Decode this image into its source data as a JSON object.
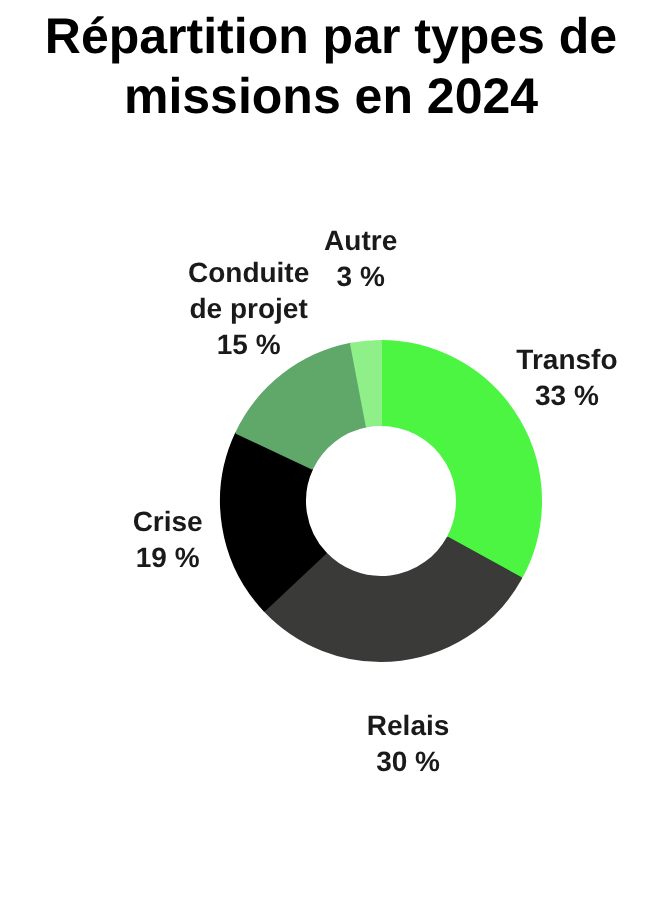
{
  "chart_data": {
    "type": "donut",
    "title": "Répartition par types de missions en 2024",
    "categories": [
      "Transfo",
      "Relais",
      "Crise",
      "Conduite de projet",
      "Autre"
    ],
    "values": [
      33,
      30,
      19,
      15,
      3
    ],
    "value_labels": [
      "33 %",
      "30 %",
      "19 %",
      "15 %",
      "3 %"
    ],
    "colors": [
      "#4cf542",
      "#3a3a38",
      "#000000",
      "#5fa86a",
      "#8ff08a"
    ]
  }
}
